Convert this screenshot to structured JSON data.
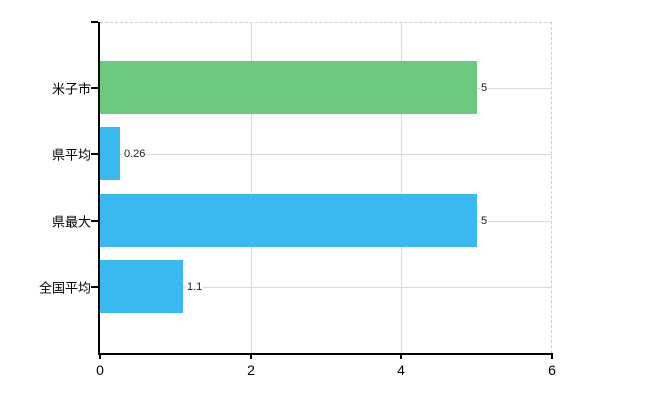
{
  "chart_data": {
    "type": "bar",
    "orientation": "horizontal",
    "title": "",
    "xlabel": "",
    "ylabel": "",
    "categories": [
      "米子市",
      "県平均",
      "県最大",
      "全国平均"
    ],
    "values": [
      5,
      0.26,
      5,
      1.1
    ],
    "value_labels": [
      "5",
      "0.26",
      "5",
      "1.1"
    ],
    "bar_colors": [
      "#6cca7e",
      "#38b9f0",
      "#38b9f0",
      "#38b9f0"
    ],
    "xlim": [
      0,
      6
    ],
    "x_ticks": [
      0,
      2,
      4,
      6
    ],
    "x_tick_labels": [
      "0",
      "2",
      "4",
      "6"
    ],
    "grid": true,
    "gridline_color": "#d9d9d9",
    "axis_color": "#000000",
    "border_style": "dashed-top-right",
    "background": "#ffffff",
    "legend": "none"
  }
}
